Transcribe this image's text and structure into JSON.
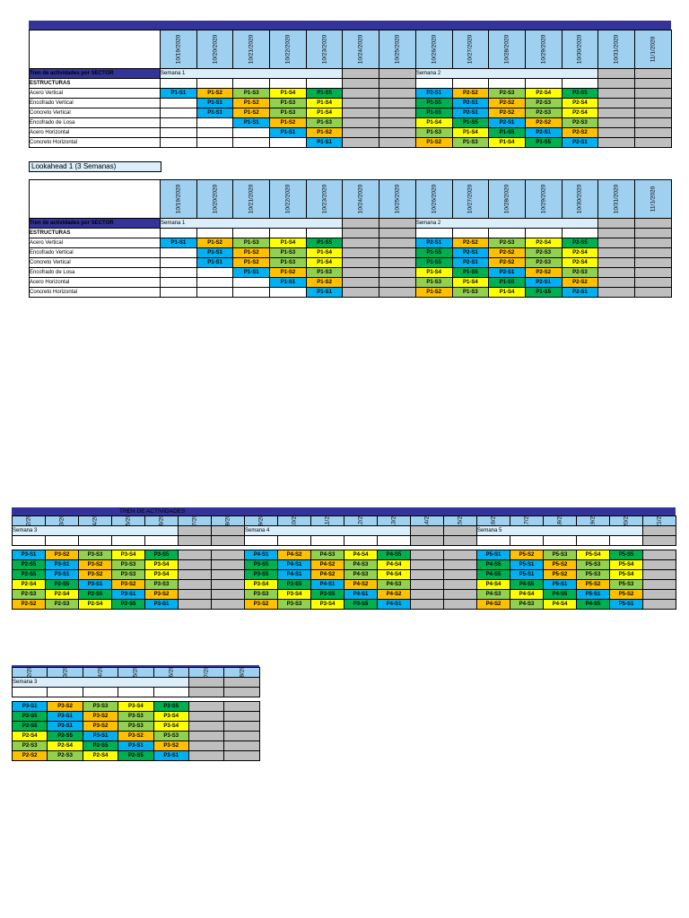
{
  "colors": {
    "cyan": "#00b0f0",
    "orange": "#ffc000",
    "yellow": "#ffff00",
    "lime": "#92d050",
    "green": "#00b050",
    "gray": "#bfbfbf",
    "date_bg": "#9fd0f0",
    "week_bg": "#dbeef9",
    "navy": "#333399"
  },
  "top": {
    "dates": [
      "10/19/2020",
      "10/20/2020",
      "10/21/2020",
      "10/22/2020",
      "10/23/2020",
      "10/24/2020",
      "10/25/2020",
      "10/26/2020",
      "10/27/2020",
      "10/28/2020",
      "10/29/2020",
      "10/30/2020",
      "10/31/2020",
      "11/1/2020"
    ],
    "gray_cols": [
      5,
      6,
      12,
      13
    ],
    "header_label": "Tren de actividades por SECTOR",
    "week1": "Semana 1",
    "week2": "Semana 2",
    "section_label": "ESTRUCTURAS",
    "rows": [
      {
        "label": "Acero Vertical",
        "cells": [
          "P1-S1",
          "P1-S2",
          "P1-S3",
          "P1-S4",
          "P1-S5",
          "",
          "",
          "P2-S1",
          "P2-S2",
          "P2-S3",
          "P2-S4",
          "P2-S5",
          "",
          ""
        ]
      },
      {
        "label": "Encofrado Vertical",
        "cells": [
          "",
          "P1-S1",
          "P1-S2",
          "P1-S3",
          "P1-S4",
          "",
          "",
          "P1-S5",
          "P2-S1",
          "P2-S2",
          "P2-S3",
          "P2-S4",
          "",
          ""
        ]
      },
      {
        "label": "Concreto Vertical",
        "cells": [
          "",
          "P1-S1",
          "P1-S2",
          "P1-S3",
          "P1-S4",
          "",
          "",
          "P1-S5",
          "P2-S1",
          "P2-S2",
          "P2-S3",
          "P2-S4",
          "",
          ""
        ]
      },
      {
        "label": "Encofrado de Losa",
        "cells": [
          "",
          "",
          "P1-S1",
          "P1-S2",
          "P1-S3",
          "",
          "",
          "P1-S4",
          "P1-S5",
          "P2-S1",
          "P2-S2",
          "P2-S3",
          "",
          ""
        ]
      },
      {
        "label": "Acero Horizontal",
        "cells": [
          "",
          "",
          "",
          "P1-S1",
          "P1-S2",
          "",
          "",
          "P1-S3",
          "P1-S4",
          "P1-S5",
          "P2-S1",
          "P2-S2",
          "",
          ""
        ]
      },
      {
        "label": "Concreto Horizontal",
        "cells": [
          "",
          "",
          "",
          "",
          "P1-S1",
          "",
          "",
          "P1-S2",
          "P1-S3",
          "P1-S4",
          "P1-S5",
          "P2-S1",
          "",
          ""
        ]
      }
    ]
  },
  "lookahead_label": "Lookahead 1 (3 Semanas)",
  "bottom": {
    "title": "TREN DE ACTIVIDADES",
    "dates": [
      "11/2/2020",
      "11/3/2020",
      "11/4/2020",
      "11/5/2020",
      "11/6/2020",
      "11/7/2020",
      "11/8/2020",
      "11/9/2020",
      "11/10/2020",
      "11/11/2020",
      "11/12/2020",
      "11/13/2020",
      "11/14/2020",
      "11/15/2020",
      "11/16/2020",
      "11/17/2020",
      "11/18/2020",
      "11/19/2020",
      "11/20/2020",
      "11/21/2020"
    ],
    "gray_cols": [
      5,
      6,
      12,
      13,
      19
    ],
    "weeks": [
      {
        "label": "Semana 3",
        "col": 0
      },
      {
        "label": "Semana 4",
        "col": 7
      },
      {
        "label": "Semana 5",
        "col": 14
      }
    ],
    "rows": [
      [
        "P3-S1",
        "P3-S2",
        "P3-S3",
        "P3-S4",
        "P3-S5",
        "",
        "",
        "P4-S1",
        "P4-S2",
        "P4-S3",
        "P4-S4",
        "P4-S5",
        "",
        "",
        "P5-S1",
        "P5-S2",
        "P5-S3",
        "P5-S4",
        "P5-S5",
        ""
      ],
      [
        "P2-S5",
        "P3-S1",
        "P3-S2",
        "P3-S3",
        "P3-S4",
        "",
        "",
        "P3-S5",
        "P4-S1",
        "P4-S2",
        "P4-S3",
        "P4-S4",
        "",
        "",
        "P4-S5",
        "P5-S1",
        "P5-S2",
        "P5-S3",
        "P5-S4",
        ""
      ],
      [
        "P2-S5",
        "P3-S1",
        "P3-S2",
        "P3-S3",
        "P3-S4",
        "",
        "",
        "P3-S5",
        "P4-S1",
        "P4-S2",
        "P4-S3",
        "P4-S4",
        "",
        "",
        "P4-S5",
        "P5-S1",
        "P5-S2",
        "P5-S3",
        "P5-S4",
        ""
      ],
      [
        "P2-S4",
        "P2-S5",
        "P3-S1",
        "P3-S2",
        "P3-S3",
        "",
        "",
        "P3-S4",
        "P3-S5",
        "P4-S1",
        "P4-S2",
        "P4-S3",
        "",
        "",
        "P4-S4",
        "P4-S5",
        "P5-S1",
        "P5-S2",
        "P5-S3",
        ""
      ],
      [
        "P2-S3",
        "P2-S4",
        "P2-S5",
        "P3-S1",
        "P3-S2",
        "",
        "",
        "P3-S3",
        "P3-S4",
        "P3-S5",
        "P4-S1",
        "P4-S2",
        "",
        "",
        "P4-S3",
        "P4-S4",
        "P4-S5",
        "P5-S1",
        "P5-S2",
        ""
      ],
      [
        "P2-S2",
        "P2-S3",
        "P2-S4",
        "P2-S5",
        "P3-S1",
        "",
        "",
        "P3-S2",
        "P3-S3",
        "P3-S4",
        "P3-S5",
        "P4-S1",
        "",
        "",
        "P4-S2",
        "P4-S3",
        "P4-S4",
        "P4-S5",
        "P5-S1",
        ""
      ]
    ]
  },
  "small": {
    "dates": [
      "11/2/2020",
      "11/3/2020",
      "11/4/2020",
      "11/5/2020",
      "11/6/2020",
      "11/7/2020",
      "11/8/2020"
    ],
    "gray_cols": [
      5,
      6
    ],
    "week": "Semana 3",
    "rows": [
      [
        "P3-S1",
        "P3-S2",
        "P3-S3",
        "P3-S4",
        "P3-S5",
        "",
        ""
      ],
      [
        "P2-S5",
        "P3-S1",
        "P3-S2",
        "P3-S3",
        "P3-S4",
        "",
        ""
      ],
      [
        "P2-S5",
        "P3-S1",
        "P3-S2",
        "P3-S3",
        "P3-S4",
        "",
        ""
      ],
      [
        "P2-S4",
        "P2-S5",
        "P3-S1",
        "P3-S2",
        "P3-S3",
        "",
        ""
      ],
      [
        "P2-S3",
        "P2-S4",
        "P2-S5",
        "P3-S1",
        "P3-S2",
        "",
        ""
      ],
      [
        "P2-S2",
        "P2-S3",
        "P2-S4",
        "P2-S5",
        "P3-S1",
        "",
        ""
      ]
    ]
  }
}
